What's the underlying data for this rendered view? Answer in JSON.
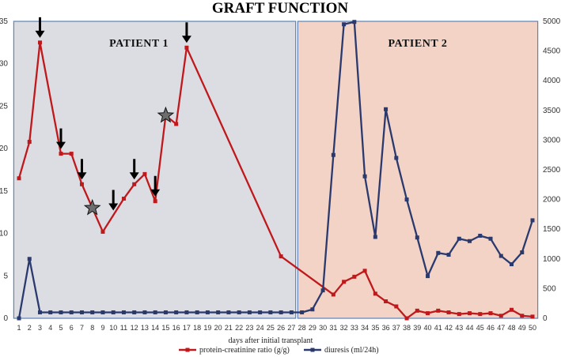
{
  "chart_data": {
    "type": "line",
    "title": "GRAFT FUNCTION",
    "xlabel": "days after initial transplant",
    "x": [
      1,
      2,
      3,
      4,
      5,
      6,
      7,
      8,
      9,
      10,
      11,
      12,
      13,
      14,
      15,
      16,
      17,
      18,
      19,
      20,
      21,
      22,
      23,
      24,
      25,
      26,
      27,
      28,
      29,
      30,
      31,
      32,
      33,
      34,
      35,
      36,
      37,
      38,
      39,
      40,
      41,
      42,
      43,
      44,
      45,
      46,
      47,
      48,
      49,
      50
    ],
    "y_left": {
      "min": 0,
      "max": 35,
      "ticks": [
        0,
        5,
        10,
        15,
        20,
        25,
        30,
        35
      ]
    },
    "y_right": {
      "min": 0,
      "max": 5000,
      "ticks": [
        0,
        500,
        1000,
        1500,
        2000,
        2500,
        3000,
        3500,
        4000,
        4500,
        5000
      ]
    },
    "panels": [
      {
        "label": "PATIENT 1",
        "x_from": 0.5,
        "x_to": 27.4,
        "color": "#dcdde3"
      },
      {
        "label": "PATIENT 2",
        "x_from": 27.6,
        "x_to": 50.5,
        "color": "#f2d3c6"
      }
    ],
    "series": [
      {
        "name": "protein-creatinine ratio (g/g)",
        "axis": "left",
        "color": "#c0191c",
        "points": [
          [
            1,
            16.5
          ],
          [
            2,
            20.8
          ],
          [
            3,
            32.5
          ],
          [
            5,
            19.4
          ],
          [
            6,
            19.4
          ],
          [
            7,
            15.8
          ],
          [
            9,
            10.2
          ],
          [
            11,
            14.1
          ],
          [
            12,
            15.8
          ],
          [
            13,
            17.0
          ],
          [
            14,
            13.8
          ],
          [
            15,
            23.9
          ],
          [
            16,
            22.9
          ],
          [
            17,
            31.9
          ],
          [
            26,
            7.3
          ],
          [
            31,
            2.8
          ],
          [
            32,
            4.3
          ],
          [
            33,
            4.9
          ],
          [
            34,
            5.6
          ],
          [
            35,
            2.9
          ],
          [
            36,
            2.0
          ],
          [
            37,
            1.4
          ],
          [
            38,
            0.0
          ],
          [
            39,
            0.9
          ],
          [
            40,
            0.6
          ],
          [
            41,
            0.9
          ],
          [
            42,
            0.7
          ],
          [
            43,
            0.5
          ],
          [
            44,
            0.6
          ],
          [
            45,
            0.5
          ],
          [
            46,
            0.6
          ],
          [
            47,
            0.3
          ],
          [
            48,
            1.0
          ],
          [
            49,
            0.3
          ],
          [
            50,
            0.2
          ]
        ]
      },
      {
        "name": "diuresis (ml/24h)",
        "axis": "right",
        "color": "#2b3a6e",
        "points": [
          [
            1,
            0
          ],
          [
            2,
            1000
          ],
          [
            3,
            100
          ],
          [
            4,
            100
          ],
          [
            5,
            100
          ],
          [
            6,
            100
          ],
          [
            7,
            100
          ],
          [
            8,
            100
          ],
          [
            9,
            100
          ],
          [
            10,
            100
          ],
          [
            11,
            100
          ],
          [
            12,
            100
          ],
          [
            13,
            100
          ],
          [
            14,
            100
          ],
          [
            15,
            100
          ],
          [
            16,
            100
          ],
          [
            17,
            100
          ],
          [
            18,
            100
          ],
          [
            19,
            100
          ],
          [
            20,
            100
          ],
          [
            21,
            100
          ],
          [
            22,
            100
          ],
          [
            23,
            100
          ],
          [
            24,
            100
          ],
          [
            25,
            100
          ],
          [
            26,
            100
          ],
          [
            27,
            100
          ],
          [
            28,
            100
          ],
          [
            29,
            150
          ],
          [
            30,
            470
          ],
          [
            31,
            2750
          ],
          [
            32,
            4950
          ],
          [
            33,
            4990
          ],
          [
            34,
            2390
          ],
          [
            35,
            1370
          ],
          [
            36,
            3520
          ],
          [
            37,
            2700
          ],
          [
            38,
            2000
          ],
          [
            39,
            1360
          ],
          [
            40,
            710
          ],
          [
            41,
            1100
          ],
          [
            42,
            1070
          ],
          [
            43,
            1340
          ],
          [
            44,
            1300
          ],
          [
            45,
            1390
          ],
          [
            46,
            1340
          ],
          [
            47,
            1050
          ],
          [
            48,
            910
          ],
          [
            49,
            1110
          ],
          [
            50,
            1650
          ]
        ]
      }
    ],
    "arrows_at_x": [
      3,
      5,
      7,
      10,
      12,
      14,
      17
    ],
    "stars_at_x": [
      8,
      15
    ]
  }
}
